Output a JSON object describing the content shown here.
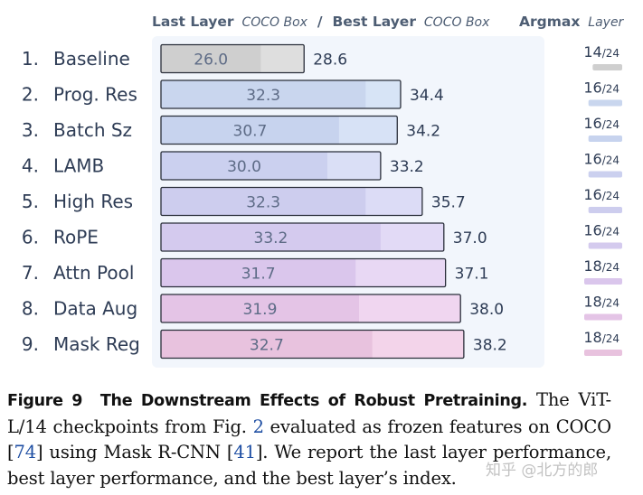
{
  "chart_data": {
    "type": "bar",
    "header": {
      "last_layer_strong": "Last Layer",
      "last_layer_italic": "COCO Box",
      "separator": "/",
      "best_layer_strong": "Best Layer",
      "best_layer_italic": "COCO Box",
      "argmax_strong": "Argmax",
      "argmax_italic": "Layer"
    },
    "value_range": [
      20,
      40
    ],
    "argmax_total": 24,
    "rows": [
      {
        "index": "1.",
        "label": "Baseline",
        "last": 26.0,
        "best": 28.6,
        "last_text": "26.0",
        "best_text": "28.6",
        "argmax": 14,
        "argmax_num": "14",
        "argmax_den": "/24",
        "color": "#dedede",
        "dark": "#cfcfcf"
      },
      {
        "index": "2.",
        "label": "Prog. Res",
        "last": 32.3,
        "best": 34.4,
        "last_text": "32.3",
        "best_text": "34.4",
        "argmax": 16,
        "argmax_num": "16",
        "argmax_den": "/24",
        "color": "#d7e4f6",
        "dark": "#c9d6ee"
      },
      {
        "index": "3.",
        "label": "Batch Sz",
        "last": 30.7,
        "best": 34.2,
        "last_text": "30.7",
        "best_text": "34.2",
        "argmax": 16,
        "argmax_num": "16",
        "argmax_den": "/24",
        "color": "#d7e2f6",
        "dark": "#c7d3ee"
      },
      {
        "index": "4.",
        "label": "LAMB",
        "last": 30.0,
        "best": 33.2,
        "last_text": "30.0",
        "best_text": "33.2",
        "argmax": 16,
        "argmax_num": "16",
        "argmax_den": "/24",
        "color": "#dadff6",
        "dark": "#cbd0ef"
      },
      {
        "index": "5.",
        "label": "High Res",
        "last": 32.3,
        "best": 35.7,
        "last_text": "32.3",
        "best_text": "35.7",
        "argmax": 16,
        "argmax_num": "16",
        "argmax_den": "/24",
        "color": "#dcdcf6",
        "dark": "#cdcdee"
      },
      {
        "index": "6.",
        "label": "RoPE",
        "last": 33.2,
        "best": 37.0,
        "last_text": "33.2",
        "best_text": "37.0",
        "argmax": 16,
        "argmax_num": "16",
        "argmax_den": "/24",
        "color": "#e2daf6",
        "dark": "#d4caee"
      },
      {
        "index": "7.",
        "label": "Attn Pool",
        "last": 31.7,
        "best": 37.1,
        "last_text": "31.7",
        "best_text": "37.1",
        "argmax": 18,
        "argmax_num": "18",
        "argmax_den": "/24",
        "color": "#e8d8f4",
        "dark": "#dac6ec"
      },
      {
        "index": "8.",
        "label": "Data Aug",
        "last": 31.9,
        "best": 38.0,
        "last_text": "31.9",
        "best_text": "38.0",
        "argmax": 18,
        "argmax_num": "18",
        "argmax_den": "/24",
        "color": "#f0d6f0",
        "dark": "#e4c4e6"
      },
      {
        "index": "9.",
        "label": "Mask Reg",
        "last": 32.7,
        "best": 38.2,
        "last_text": "32.7",
        "best_text": "38.2",
        "argmax": 18,
        "argmax_num": "18",
        "argmax_den": "/24",
        "color": "#f3d4ea",
        "dark": "#e8c2de"
      }
    ]
  },
  "caption": {
    "figure_label": "Figure 9",
    "title": "The Downstream Effects of Robust Pretraining.",
    "t1": " The ViT-L/14 checkpoints from Fig. ",
    "ref_fig": "2",
    "t2": " evaluated as frozen features on COCO [",
    "ref_coco": "74",
    "t3": "] using Mask R-CNN [",
    "ref_mrcnn": "41",
    "t4": "]. We report the last layer performance, best layer performance, and the best layer’s index."
  },
  "watermark": "知乎 @北方的郎"
}
